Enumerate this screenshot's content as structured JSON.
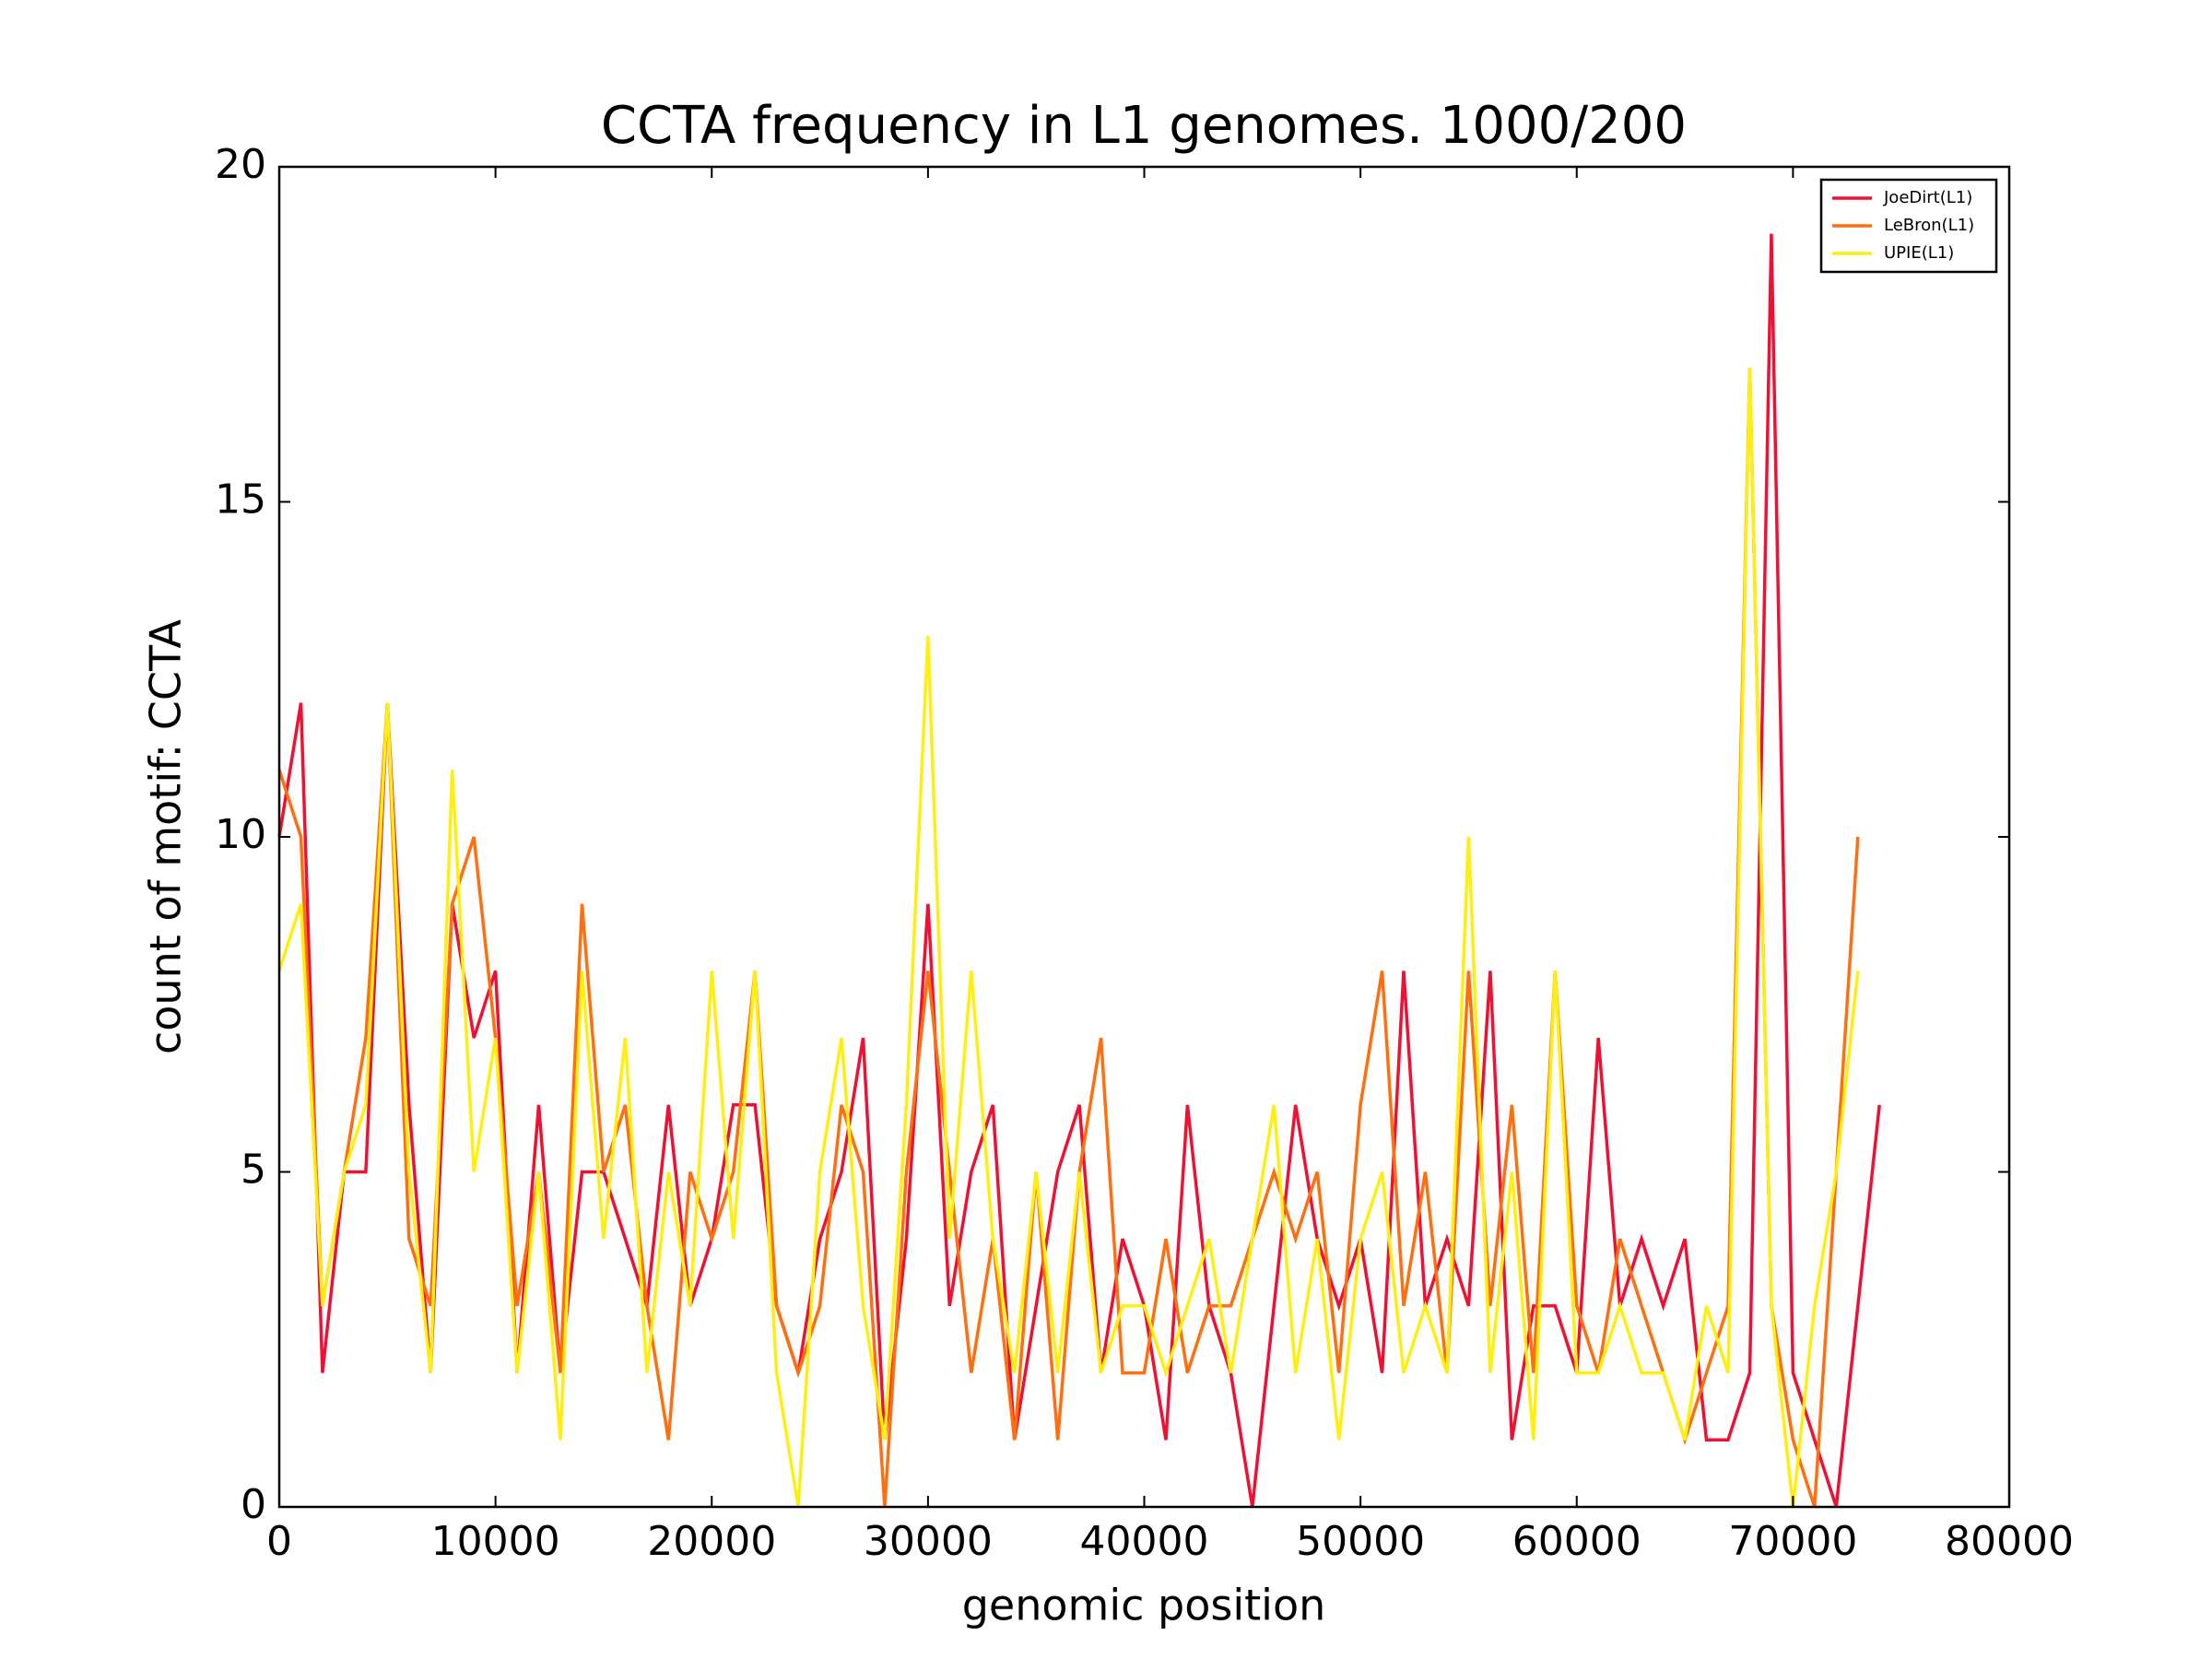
{
  "chart_data": {
    "type": "line",
    "title": "CCTA frequency in L1 genomes. 1000/200",
    "x_label": "genomic position",
    "y_label": "count of motif: CCTA",
    "x": [
      0,
      1000,
      2000,
      3000,
      4000,
      5000,
      6000,
      7000,
      8000,
      9000,
      10000,
      11000,
      12000,
      13000,
      14000,
      15000,
      16000,
      17000,
      18000,
      19000,
      20000,
      21000,
      22000,
      23000,
      24000,
      25000,
      26000,
      27000,
      28000,
      29000,
      30000,
      31000,
      32000,
      33000,
      34000,
      35000,
      36000,
      37000,
      38000,
      39000,
      40000,
      41000,
      42000,
      43000,
      44000,
      45000,
      46000,
      47000,
      48000,
      49000,
      50000,
      51000,
      52000,
      53000,
      54000,
      55000,
      56000,
      57000,
      58000,
      59000,
      60000,
      61000,
      62000,
      63000,
      64000,
      65000,
      66000,
      67000,
      68000,
      69000,
      70000,
      71000,
      72000,
      73000,
      74000
    ],
    "series": [
      {
        "name": "JoeDirt(L1)",
        "color": "#ee1133",
        "values": [
          10,
          12,
          2,
          5,
          5,
          12,
          6,
          2,
          9,
          7,
          8,
          2,
          6,
          2,
          5,
          5,
          4,
          3,
          6,
          3,
          4,
          6,
          6,
          3,
          2,
          4,
          5,
          7,
          1,
          4,
          9,
          3,
          5,
          6,
          1,
          3,
          5,
          6,
          2,
          4,
          3,
          1,
          6,
          3,
          2,
          0,
          3,
          6,
          4,
          3,
          4,
          2,
          8,
          3,
          4,
          3,
          8,
          1,
          3,
          3,
          2,
          7,
          3,
          4,
          3,
          4,
          1,
          1,
          2,
          19,
          2,
          1,
          0,
          3,
          6
        ]
      },
      {
        "name": "LeBron(L1)",
        "color": "#ff6f0f",
        "values": [
          11,
          10,
          3,
          5,
          7,
          12,
          4,
          3,
          9,
          10,
          7,
          3,
          5,
          2,
          9,
          5,
          6,
          3,
          1,
          5,
          4,
          5,
          8,
          3,
          2,
          3,
          6,
          5,
          0,
          5,
          8,
          5,
          2,
          4,
          1,
          5,
          1,
          5,
          7,
          2,
          2,
          4,
          2,
          3,
          3,
          4,
          5,
          4,
          5,
          2,
          6,
          8,
          3,
          5,
          2,
          8,
          3,
          6,
          2,
          8,
          3,
          2,
          4,
          3,
          2,
          1,
          2,
          3,
          17,
          3,
          1,
          0,
          5,
          10,
          null
        ]
      },
      {
        "name": "UPIE(L1)",
        "color": "#ffee11",
        "values": [
          8,
          9,
          3,
          5,
          6,
          12,
          5,
          2,
          11,
          5,
          7,
          2,
          5,
          1,
          8,
          4,
          7,
          2,
          5,
          3,
          8,
          4,
          8,
          2,
          0,
          5,
          7,
          3,
          1,
          6,
          13,
          4,
          8,
          4,
          2,
          5,
          2,
          5,
          2,
          3,
          3,
          2,
          3,
          4,
          2,
          4,
          6,
          2,
          4,
          1,
          4,
          5,
          2,
          3,
          2,
          10,
          2,
          5,
          1,
          8,
          2,
          2,
          3,
          2,
          2,
          1,
          3,
          2,
          17,
          3,
          0,
          3,
          5,
          8,
          null
        ]
      }
    ],
    "xlim": [
      0,
      80000
    ],
    "xticks": [
      0,
      10000,
      20000,
      30000,
      40000,
      50000,
      60000,
      70000,
      80000
    ],
    "ylim": [
      0,
      20
    ],
    "yticks": [
      0,
      5,
      10,
      15,
      20
    ],
    "legend": "upper right"
  }
}
